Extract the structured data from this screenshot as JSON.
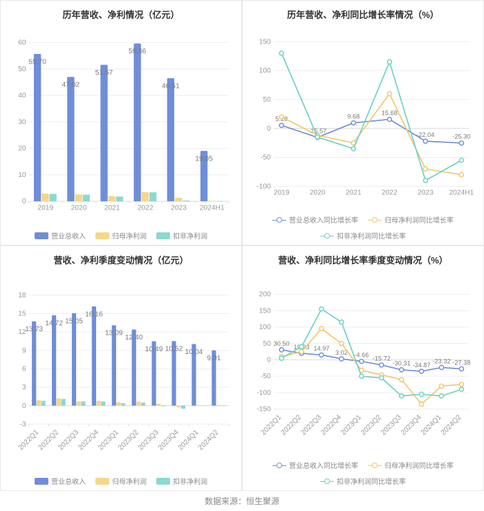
{
  "source_label": "数据来源：恒生聚源",
  "colors": {
    "bar_primary": "#6f8ed9",
    "bar_secondary": "#f4d78a",
    "bar_tertiary": "#8bd9d0",
    "line_primary": "#6f8ed9",
    "line_secondary": "#f0c766",
    "line_tertiary": "#6ad0c6",
    "grid": "#eeeeee",
    "axis": "#dddddd",
    "tick_text": "#999999",
    "label_text": "#7a7a7a",
    "title_text": "#333333",
    "bg": "#ffffff"
  },
  "fontsize": {
    "title": 13,
    "tick": 10,
    "label": 10,
    "legend": 10,
    "source": 12
  },
  "panel_a": {
    "type": "bar",
    "title": "历年营收、净利情况（亿元）",
    "categories": [
      "2019",
      "2020",
      "2021",
      "2022",
      "2023",
      "2024H1"
    ],
    "ylim": [
      0,
      60
    ],
    "ytick_step": 10,
    "series": [
      {
        "name": "营业总收入",
        "color": "#6f8ed9",
        "values": [
          55.7,
          47.02,
          51.57,
          59.66,
          46.51,
          19.05
        ],
        "show_label": true
      },
      {
        "name": "归母净利润",
        "color": "#f4d78a",
        "values": [
          2.9,
          2.6,
          2.0,
          3.5,
          1.3,
          0.2
        ],
        "show_label": false
      },
      {
        "name": "扣非净利润",
        "color": "#8bd9d0",
        "values": [
          2.8,
          2.5,
          1.8,
          3.4,
          0.3,
          0.1
        ],
        "show_label": false
      }
    ],
    "legend": [
      "营业总收入",
      "归母净利润",
      "扣非净利润"
    ]
  },
  "panel_b": {
    "type": "line",
    "title": "历年营收、净利同比增长率情况（%）",
    "categories": [
      "2019",
      "2020",
      "2021",
      "2022",
      "2023",
      "2024H1"
    ],
    "ylim": [
      -100,
      150
    ],
    "ytick_step": 50,
    "series": [
      {
        "name": "营业总收入同比增长率",
        "color": "#6f8ed9",
        "values": [
          5.28,
          -15.57,
          9.68,
          15.68,
          -22.04,
          -25.3
        ],
        "show_label": true
      },
      {
        "name": "归母净利润同比增长率",
        "color": "#f0c766",
        "values": [
          20,
          -12,
          -25,
          60,
          -70,
          -80
        ],
        "show_label": false
      },
      {
        "name": "扣非净利润同比增长率",
        "color": "#6ad0c6",
        "values": [
          130,
          -15,
          -35,
          115,
          -90,
          -55
        ],
        "show_label": false
      }
    ],
    "legend": [
      "营业总收入同比增长率",
      "归母净利润同比增长率",
      "扣非净利润同比增长率"
    ]
  },
  "panel_c": {
    "type": "bar",
    "title": "营收、净利季度变动情况（亿元）",
    "categories": [
      "2022Q1",
      "2022Q2",
      "2022Q3",
      "2022Q4",
      "2023Q1",
      "2023Q2",
      "2023Q3",
      "2023Q4",
      "2024Q1",
      "2024Q2"
    ],
    "ylim": [
      -3,
      18
    ],
    "ytick_step": 3,
    "rotate_xticks": true,
    "series": [
      {
        "name": "营业总收入",
        "color": "#6f8ed9",
        "values": [
          13.73,
          14.72,
          15.05,
          16.16,
          13.09,
          12.4,
          10.49,
          10.52,
          10.04,
          9.01
        ],
        "show_label": true
      },
      {
        "name": "归母净利润",
        "color": "#f4d78a",
        "values": [
          0.9,
          1.2,
          0.7,
          0.8,
          0.6,
          0.7,
          0.3,
          -0.3,
          0.1,
          0.1
        ],
        "show_label": false
      },
      {
        "name": "扣非净利润",
        "color": "#8bd9d0",
        "values": [
          0.8,
          1.1,
          0.7,
          0.7,
          0.4,
          0.5,
          -0.1,
          -0.5,
          0.05,
          0.05
        ],
        "show_label": false
      }
    ],
    "legend": [
      "营业总收入",
      "归母净利润",
      "扣非净利润"
    ]
  },
  "panel_d": {
    "type": "line",
    "title": "营收、净利同比增长率季度变动情况（%）",
    "categories": [
      "2022Q1",
      "2022Q2",
      "2022Q3",
      "2022Q4",
      "2023Q1",
      "2023Q2",
      "2023Q3",
      "2023Q4",
      "2024Q1",
      "2024Q2"
    ],
    "ylim": [
      -150,
      200
    ],
    "ytick_step": 50,
    "rotate_xticks": true,
    "series": [
      {
        "name": "营业总收入同比增长率",
        "color": "#6f8ed9",
        "values": [
          30.5,
          19.93,
          14.97,
          3.02,
          -4.66,
          -15.72,
          -30.31,
          -34.87,
          -23.32,
          -27.38
        ],
        "show_label": true
      },
      {
        "name": "归母净利润同比增长率",
        "color": "#f0c766",
        "values": [
          10,
          25,
          95,
          50,
          -32,
          -46,
          -60,
          -135,
          -80,
          -75
        ],
        "show_label": false
      },
      {
        "name": "扣非净利润同比增长率",
        "color": "#6ad0c6",
        "values": [
          5,
          40,
          155,
          115,
          -50,
          -55,
          -110,
          -105,
          -110,
          -90
        ],
        "show_label": false
      }
    ],
    "legend": [
      "营业总收入同比增长率",
      "归母净利润同比增长率",
      "扣非净利润同比增长率"
    ]
  }
}
